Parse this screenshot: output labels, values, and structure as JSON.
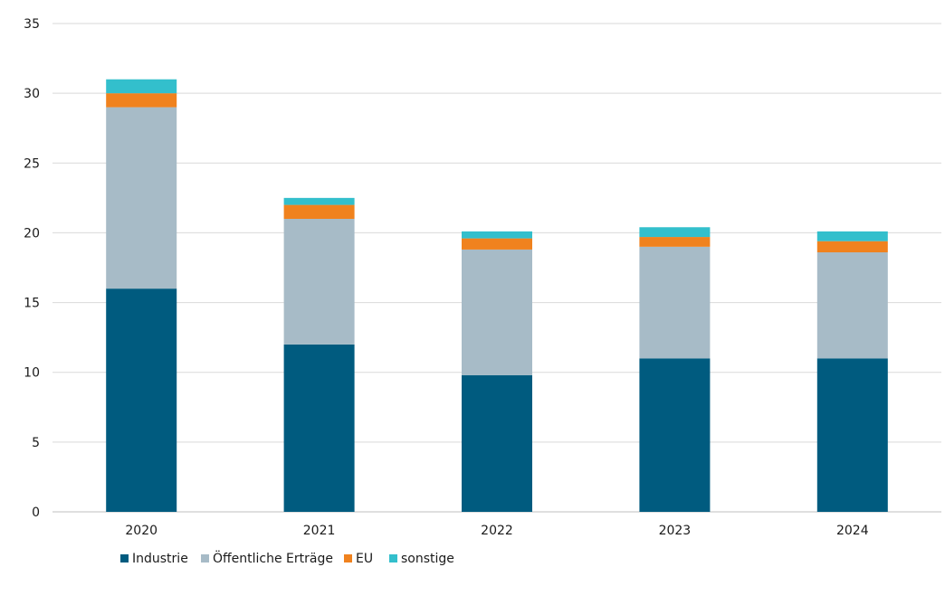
{
  "chart_data": {
    "type": "bar",
    "stacked": true,
    "categories": [
      "2020",
      "2021",
      "2022",
      "2023",
      "2024"
    ],
    "series": [
      {
        "name": "Industrie",
        "color": "#005b7f",
        "values": [
          16,
          12,
          9.8,
          11,
          11
        ]
      },
      {
        "name": "Öffentliche Erträge",
        "color": "#a7bbc7",
        "values": [
          13,
          9,
          9,
          8,
          7.6
        ]
      },
      {
        "name": "EU",
        "color": "#f0821e",
        "values": [
          1,
          1,
          0.8,
          0.7,
          0.8
        ]
      },
      {
        "name": "sonstige",
        "color": "#33bfcc",
        "values": [
          1,
          0.5,
          0.5,
          0.7,
          0.7
        ]
      }
    ],
    "ylim": [
      0,
      35
    ],
    "yticks": [
      "0",
      "5",
      "10",
      "15",
      "20",
      "25",
      "30",
      "35"
    ],
    "grid": true,
    "legend_position": "bottom-left"
  }
}
